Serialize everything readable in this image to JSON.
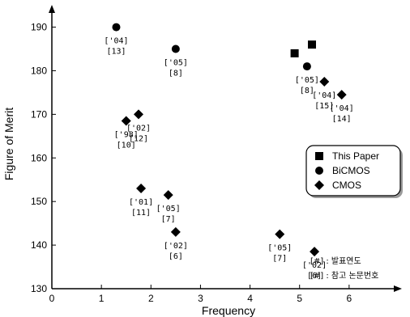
{
  "chart_data": {
    "type": "scatter",
    "title": "",
    "xlabel": "Frequency",
    "ylabel": "Figure of Merit",
    "xlim": [
      0,
      7
    ],
    "ylim": [
      130,
      194
    ],
    "x_ticks": [
      0,
      1,
      2,
      3,
      4,
      5,
      6
    ],
    "y_ticks": [
      130,
      140,
      150,
      160,
      170,
      180,
      190
    ],
    "grid": false,
    "legend_position": "right",
    "series": [
      {
        "name": "This Paper",
        "marker": "square",
        "points": [
          {
            "x": 4.9,
            "y": 184,
            "label_lines": []
          },
          {
            "x": 5.25,
            "y": 186,
            "label_lines": []
          }
        ]
      },
      {
        "name": "BiCMOS",
        "marker": "circle",
        "points": [
          {
            "x": 1.3,
            "y": 190,
            "label_lines": [
              "['04]",
              "[13]"
            ]
          },
          {
            "x": 2.5,
            "y": 185,
            "label_lines": [
              "['05]",
              "[8]"
            ]
          },
          {
            "x": 5.15,
            "y": 181,
            "label_lines": [
              "['05]",
              "[8]"
            ]
          }
        ]
      },
      {
        "name": "CMOS",
        "marker": "diamond",
        "points": [
          {
            "x": 1.5,
            "y": 168.5,
            "label_lines": [
              "['98]",
              "[10]"
            ]
          },
          {
            "x": 1.75,
            "y": 170,
            "label_lines": [
              "['02]",
              "[12]"
            ]
          },
          {
            "x": 1.8,
            "y": 153,
            "label_lines": [
              "['01]",
              "[11]"
            ]
          },
          {
            "x": 2.35,
            "y": 151.5,
            "label_lines": [
              "['05]",
              "[7]"
            ]
          },
          {
            "x": 2.5,
            "y": 143,
            "label_lines": [
              "['02]",
              "[6]"
            ]
          },
          {
            "x": 4.6,
            "y": 142.5,
            "label_lines": [
              "['05]",
              "[7]"
            ]
          },
          {
            "x": 5.3,
            "y": 138.5,
            "label_lines": [
              "['02]",
              "[6]"
            ]
          },
          {
            "x": 5.5,
            "y": 177.5,
            "label_lines": [
              "['04]",
              "[15]"
            ]
          },
          {
            "x": 5.85,
            "y": 174.5,
            "label_lines": [
              "['04]",
              "[14]"
            ]
          }
        ]
      }
    ],
    "notes": [
      "[#] : 발표연도",
      "[#] : 참고 논문번호"
    ]
  }
}
